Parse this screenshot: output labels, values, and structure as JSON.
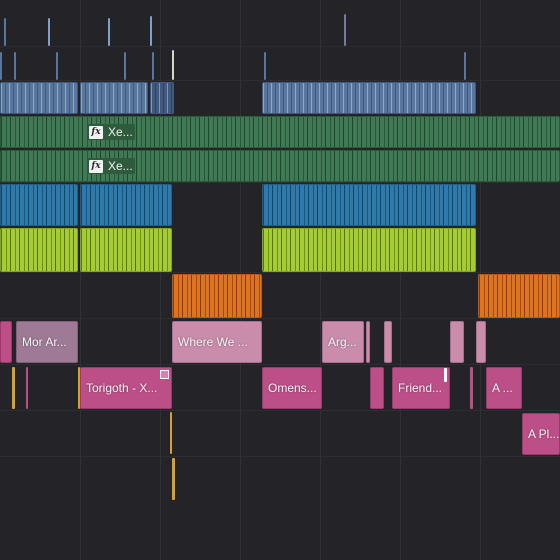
{
  "timeline": {
    "tracks": [
      {
        "name": "video-track-top",
        "color": "#5877a0"
      },
      {
        "name": "video-fx-track-1",
        "color": "#3f7a55"
      },
      {
        "name": "video-fx-track-2",
        "color": "#3f7a55"
      },
      {
        "name": "audio-track-blue",
        "color": "#2f7aac"
      },
      {
        "name": "audio-track-lime",
        "color": "#a5cc32"
      },
      {
        "name": "audio-track-orange",
        "color": "#e07320"
      },
      {
        "name": "subtitle-track-1",
        "color": "#bd4f88"
      },
      {
        "name": "subtitle-track-2",
        "color": "#bd4f88"
      },
      {
        "name": "subtitle-track-3",
        "color": "#bd4f88"
      }
    ],
    "fx_clips": {
      "fx1": {
        "icon": "fx-icon",
        "label": "Xe..."
      },
      "fx2": {
        "icon": "fx-icon",
        "label": "Xe..."
      }
    },
    "clip_labels": {
      "mor_ar": "Mor Ar...",
      "where_we": "Where We ...",
      "arg": "Arg...",
      "torigoth": "Torigoth - X...",
      "omens": "Omens...",
      "friend": "Friend...",
      "a": "A ...",
      "a_pl": "A Pl..."
    }
  }
}
